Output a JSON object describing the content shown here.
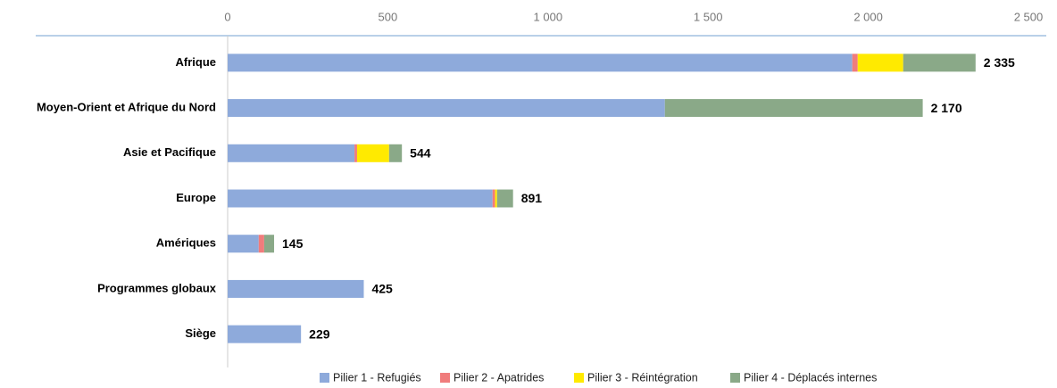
{
  "chart_data": {
    "type": "stacked-barh",
    "categories": [
      "Afrique",
      "Moyen-Orient et Afrique du Nord",
      "Asie et Pacifique",
      "Europe",
      "Amériques",
      "Programmes globaux",
      "Siège"
    ],
    "series": [
      {
        "name": "Pilier 1 - Refugiés",
        "color": "#8eaadb",
        "values": [
          1950,
          1365,
          396,
          827,
          97,
          425,
          229
        ]
      },
      {
        "name": "Pilier 2 - Apatrides",
        "color": "#f07c7c",
        "values": [
          17,
          0,
          8,
          8,
          17,
          0,
          0
        ]
      },
      {
        "name": "Pilier 3 - Réintégration",
        "color": "#ffea00",
        "values": [
          142,
          0,
          100,
          6,
          0,
          0,
          0
        ]
      },
      {
        "name": "Pilier 4 - Déplacés internes",
        "color": "#8aa988",
        "values": [
          226,
          805,
          40,
          50,
          31,
          0,
          0
        ]
      }
    ],
    "totals": [
      2335,
      2170,
      544,
      891,
      145,
      425,
      229
    ],
    "total_labels": [
      "2 335",
      "2 170",
      "544",
      "891",
      "145",
      "425",
      "229"
    ],
    "xlim": [
      0,
      2500
    ],
    "xticks": [
      0,
      500,
      {
        "value": 1000,
        "label": "1 000"
      },
      {
        "value": 1500,
        "label": "1 500"
      },
      {
        "value": 2000,
        "label": "2 000"
      },
      {
        "value": 2500,
        "label": "2 500"
      }
    ],
    "legend": "bottom"
  }
}
